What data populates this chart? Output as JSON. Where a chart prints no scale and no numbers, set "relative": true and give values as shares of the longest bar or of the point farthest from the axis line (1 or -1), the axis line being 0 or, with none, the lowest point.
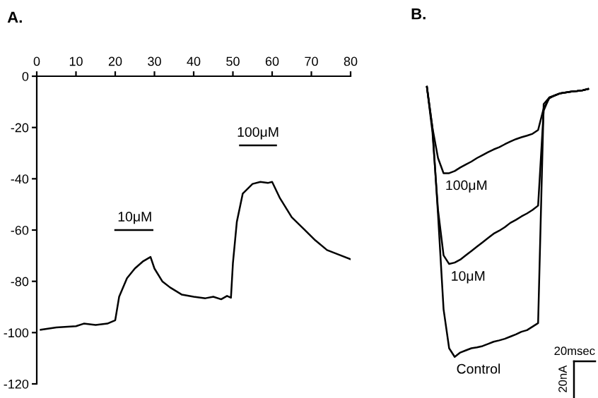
{
  "chart_data": [
    {
      "type": "line",
      "title": "A.",
      "xlim": [
        0,
        80
      ],
      "xticks": [
        0,
        10,
        20,
        30,
        40,
        50,
        60,
        70,
        80
      ],
      "ylim": [
        -120,
        0
      ],
      "yticks": [
        -120,
        -100,
        -80,
        -60,
        -40,
        -20,
        0
      ],
      "grid": false,
      "legend": false,
      "marker": "none",
      "line_style": "solid",
      "series": [
        {
          "color": "#000000",
          "x": [
            1,
            5,
            10,
            12,
            15,
            18,
            20,
            21,
            23,
            25,
            27,
            29,
            30,
            32,
            34,
            37,
            40,
            43,
            45,
            47,
            48.5,
            49.5,
            50,
            51,
            52.5,
            55,
            57,
            59,
            60,
            62,
            65,
            68,
            71,
            74,
            77,
            80
          ],
          "values": [
            -98.9,
            -98,
            -97.5,
            -96.5,
            -97,
            -96.5,
            -95.2,
            -86,
            -78.8,
            -75,
            -72.3,
            -70.5,
            -75,
            -80,
            -82.4,
            -85.2,
            -86,
            -86.6,
            -86,
            -87,
            -85.7,
            -86.4,
            -73,
            -56.8,
            -45.8,
            -42,
            -41.2,
            -41.6,
            -41.2,
            -47.6,
            -55,
            -59.5,
            -64,
            -67.8,
            -69.6,
            -71.4
          ]
        },
        {
          "color": "#000000",
          "x": [
            20,
            29.5
          ],
          "values": [
            -60,
            -60
          ]
        },
        {
          "color": "#000000",
          "x": [
            51.8,
            61
          ],
          "values": [
            -27,
            -27
          ]
        }
      ],
      "annotations": [
        {
          "text": "10μM",
          "x": 25,
          "y": -60
        },
        {
          "text": "100μM",
          "x": 56.4,
          "y": -27
        }
      ]
    },
    {
      "type": "line",
      "title": "B.",
      "relative": true,
      "legend": false,
      "grid": false,
      "marker": "none",
      "line_style": "solid",
      "categories": [
        null,
        null,
        null,
        null,
        null,
        null,
        null,
        null,
        null,
        null,
        null,
        null,
        null,
        null,
        null,
        null,
        null,
        null,
        null,
        null,
        null,
        null,
        null,
        null,
        null,
        null,
        null,
        null,
        null,
        null
      ],
      "series": [
        {
          "name": "100μM",
          "color": "#000000",
          "values": [
            1.0,
            0.848,
            0.736,
            0.68,
            0.68,
            0.688,
            0.701,
            0.712,
            0.723,
            0.736,
            0.747,
            0.758,
            0.768,
            0.776,
            0.787,
            0.797,
            0.806,
            0.813,
            0.819,
            0.826,
            0.84,
            0.92,
            0.957,
            0.968,
            0.976,
            0.979,
            0.982,
            0.984,
            0.987,
            0.992
          ]
        },
        {
          "name": "10μM",
          "color": "#000000",
          "values": [
            1.0,
            0.832,
            0.544,
            0.376,
            0.344,
            0.349,
            0.36,
            0.376,
            0.392,
            0.408,
            0.424,
            0.44,
            0.456,
            0.467,
            0.48,
            0.496,
            0.507,
            0.52,
            0.531,
            0.544,
            0.56,
            0.912,
            0.96,
            0.968,
            0.976,
            0.979,
            0.982,
            0.984,
            0.987,
            0.992
          ]
        },
        {
          "name": "Control",
          "color": "#000000",
          "values": [
            1.0,
            0.848,
            0.528,
            0.176,
            0.032,
            0.0,
            0.016,
            0.024,
            0.032,
            0.035,
            0.04,
            0.048,
            0.056,
            0.061,
            0.067,
            0.075,
            0.083,
            0.093,
            0.099,
            0.112,
            0.125,
            0.936,
            0.96,
            0.968,
            0.976,
            0.979,
            0.982,
            0.984,
            0.987,
            0.992
          ]
        }
      ],
      "annotations": [
        "20msec",
        "20nA"
      ]
    }
  ]
}
